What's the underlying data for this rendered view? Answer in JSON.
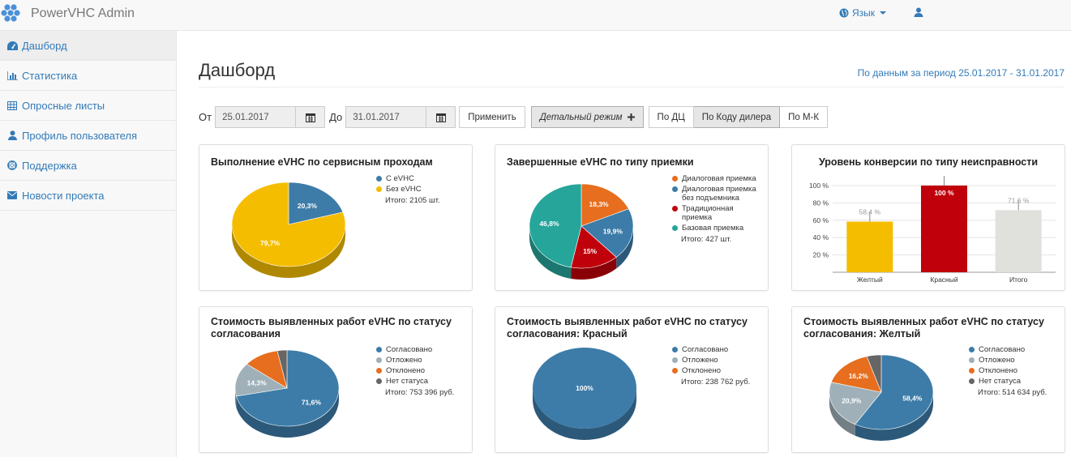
{
  "app": {
    "title": "PowerVHC Admin"
  },
  "navbar": {
    "language_label": "Язык"
  },
  "sidebar": {
    "items": [
      {
        "label": "Дашборд",
        "icon": "dashboard-icon"
      },
      {
        "label": "Статистика",
        "icon": "bar-chart-icon"
      },
      {
        "label": "Опросные листы",
        "icon": "table-icon"
      },
      {
        "label": "Профиль пользователя",
        "icon": "user-icon"
      },
      {
        "label": "Поддержка",
        "icon": "lifebuoy-icon"
      },
      {
        "label": "Новости проекта",
        "icon": "envelope-icon"
      }
    ]
  },
  "page": {
    "title": "Дашборд",
    "period": "По данным за период 25.01.2017 - 31.01.2017"
  },
  "filters": {
    "from_label": "От",
    "from_value": "25.01.2017",
    "to_label": "До",
    "to_value": "31.01.2017",
    "apply_label": "Применить",
    "detail_label": "Детальный режим",
    "group_buttons": [
      "По ДЦ",
      "По Коду дилера",
      "По М-К"
    ]
  },
  "colors": {
    "blue": "#3d7ca8",
    "yellow": "#f5bd00",
    "orange": "#e66e1e",
    "red": "#c0000a",
    "teal": "#26a59a",
    "grey": "#9fb0b8",
    "dark_grey": "#666666",
    "light_grey": "#e0e0dc",
    "link": "#337ab7"
  },
  "panels": {
    "p1": {
      "title": "Выполнение eVHC по сервисным проходам",
      "legend": [
        "С eVHC",
        "Без eVHC"
      ],
      "total": "Итого: 2105 шт."
    },
    "p2": {
      "title": "Завершенные eVHC по типу приемки",
      "legend": [
        "Диалоговая приемка",
        "Диалоговая приемка без подъемника",
        "Традиционная приемка",
        "Базовая приемка"
      ],
      "total": "Итого: 427 шт."
    },
    "p3": {
      "title": "Уровень конверсии по типу неисправности"
    },
    "p4": {
      "title_line1": "Стоимость выявленных работ eVHC по статусу",
      "title_line2": "согласования",
      "legend": [
        "Согласовано",
        "Отложено",
        "Отклонено",
        "Нет статуса"
      ],
      "total": "Итого: 753 396 руб."
    },
    "p5": {
      "title_line1": "Стоимость выявленных работ eVHC по статусу",
      "title_line2": "согласования: Красный",
      "legend": [
        "Согласовано",
        "Отложено",
        "Отклонено"
      ],
      "total": "Итого: 238 762 руб."
    },
    "p6": {
      "title_line1": "Стоимость выявленных работ eVHC по статусу",
      "title_line2": "согласования: Желтый",
      "legend": [
        "Согласовано",
        "Отложено",
        "Отклонено",
        "Нет статуса"
      ],
      "total": "Итого: 514 634 руб."
    }
  },
  "chart_data": [
    {
      "type": "pie",
      "title": "Выполнение eVHC по сервисным проходам",
      "labels": [
        "С eVHC",
        "Без eVHC"
      ],
      "values": [
        20.3,
        79.7
      ],
      "data_labels": [
        "20,3%",
        "79,7%"
      ],
      "colors": [
        "#3d7ca8",
        "#f5bd00"
      ]
    },
    {
      "type": "pie",
      "title": "Завершенные eVHC по типу приемки",
      "labels": [
        "Диалоговая приемка",
        "Диалоговая приемка без подъемника",
        "Традиционная приемка",
        "Базовая приемка"
      ],
      "values": [
        18.3,
        19.9,
        15,
        46.8
      ],
      "data_labels": [
        "18,3%",
        "19,9%",
        "15%",
        "46,8%"
      ],
      "colors": [
        "#e66e1e",
        "#3d7ca8",
        "#c0000a",
        "#26a59a"
      ]
    },
    {
      "type": "bar",
      "title": "Уровень конверсии по типу неисправности",
      "categories": [
        "Желтый",
        "Красный",
        "Итого"
      ],
      "values": [
        58.4,
        100,
        71.6
      ],
      "data_labels": [
        "58,4 %",
        "100 %",
        "71,6 %"
      ],
      "colors": [
        "#f5bd00",
        "#c0000a",
        "#e0e0dc"
      ],
      "yticks": [
        "20 %",
        "40 %",
        "60 %",
        "80 %",
        "100 %"
      ],
      "ylim": [
        0,
        100
      ],
      "grid": true
    },
    {
      "type": "pie",
      "title": "Стоимость выявленных работ eVHC по статусу согласования",
      "labels": [
        "Согласовано",
        "Отложено",
        "Отклонено",
        "Нет статуса"
      ],
      "values": [
        71.6,
        14.3,
        11.1,
        3.0
      ],
      "data_labels": [
        "71,6%",
        "14,3%",
        "",
        ""
      ],
      "colors": [
        "#3d7ca8",
        "#9fb0b8",
        "#e66e1e",
        "#666666"
      ]
    },
    {
      "type": "pie",
      "title": "Стоимость выявленных работ eVHC по статусу согласования: Красный",
      "labels": [
        "Согласовано",
        "Отложено",
        "Отклонено"
      ],
      "values": [
        100,
        0,
        0
      ],
      "data_labels": [
        "100%",
        "",
        ""
      ],
      "colors": [
        "#3d7ca8",
        "#9fb0b8",
        "#e66e1e"
      ]
    },
    {
      "type": "pie",
      "title": "Стоимость выявленных работ eVHC по статусу согласования: Желтый",
      "labels": [
        "Согласовано",
        "Отложено",
        "Отклонено",
        "Нет статуса"
      ],
      "values": [
        58.4,
        20.9,
        16.2,
        4.5
      ],
      "data_labels": [
        "58,4%",
        "20,9%",
        "16,2%",
        ""
      ],
      "colors": [
        "#3d7ca8",
        "#9fb0b8",
        "#e66e1e",
        "#666666"
      ]
    }
  ]
}
